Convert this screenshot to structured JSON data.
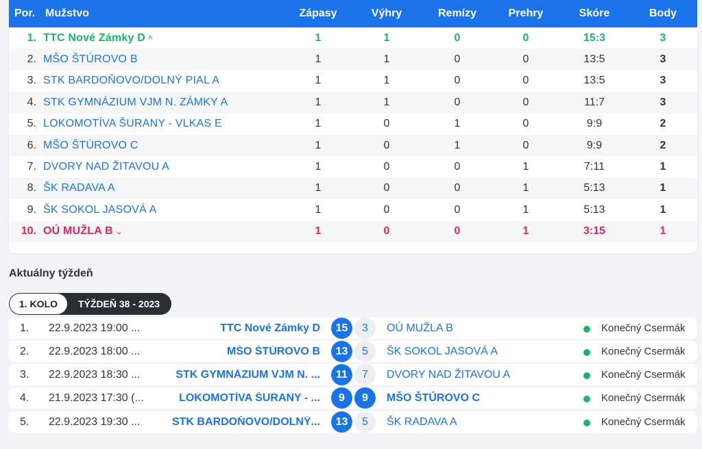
{
  "standings": {
    "headers": {
      "pos": "Por.",
      "team": "Mužstvo",
      "matches": "Zápasy",
      "wins": "Výhry",
      "draws": "Remízy",
      "losses": "Prehry",
      "score": "Skóre",
      "points": "Body"
    },
    "rows": [
      {
        "pos": "1.",
        "team": "TTC Nové Zámky D",
        "matches": "1",
        "wins": "1",
        "draws": "0",
        "losses": "0",
        "score": "15:3",
        "points": "3",
        "chev": "^"
      },
      {
        "pos": "2.",
        "team": "MŠO ŠTÚROVO B",
        "matches": "1",
        "wins": "1",
        "draws": "0",
        "losses": "0",
        "score": "13:5",
        "points": "3"
      },
      {
        "pos": "3.",
        "team": "STK BARDOŇOVO/DOLNÝ PIAL A",
        "matches": "1",
        "wins": "1",
        "draws": "0",
        "losses": "0",
        "score": "13:5",
        "points": "3"
      },
      {
        "pos": "4.",
        "team": "STK GYMNÁZIUM VJM N. ZÁMKY A",
        "matches": "1",
        "wins": "1",
        "draws": "0",
        "losses": "0",
        "score": "11:7",
        "points": "3"
      },
      {
        "pos": "5.",
        "team": "LOKOMOTÍVA ŠURANY - VLKAS E",
        "matches": "1",
        "wins": "0",
        "draws": "1",
        "losses": "0",
        "score": "9:9",
        "points": "2"
      },
      {
        "pos": "6.",
        "team": "MŠO ŠTÚROVO C",
        "matches": "1",
        "wins": "0",
        "draws": "1",
        "losses": "0",
        "score": "9:9",
        "points": "2"
      },
      {
        "pos": "7.",
        "team": "DVORY NAD ŽITAVOU A",
        "matches": "1",
        "wins": "0",
        "draws": "0",
        "losses": "1",
        "score": "7:11",
        "points": "1"
      },
      {
        "pos": "8.",
        "team": "ŠK RADAVA A",
        "matches": "1",
        "wins": "0",
        "draws": "0",
        "losses": "1",
        "score": "5:13",
        "points": "1"
      },
      {
        "pos": "9.",
        "team": "ŠK SOKOL JASOVÁ A",
        "matches": "1",
        "wins": "0",
        "draws": "0",
        "losses": "1",
        "score": "5:13",
        "points": "1"
      },
      {
        "pos": "10.",
        "team": "OÚ MUŽLA B",
        "matches": "1",
        "wins": "0",
        "draws": "0",
        "losses": "1",
        "score": "3:15",
        "points": "1",
        "chev": "⌄"
      }
    ]
  },
  "week": {
    "title": "Aktuálny týždeň",
    "round_label": "1. KOLO",
    "week_label": "TÝŽDEŇ 38 - 2023"
  },
  "matches": [
    {
      "no": "1.",
      "date": "22.9.2023 19:00 ...",
      "home": "TTC Nové Zámky D",
      "home_score": "15",
      "away_score": "3",
      "away": "OÚ MUŽLA B",
      "venue": "Konečný Csermák"
    },
    {
      "no": "2.",
      "date": "22.9.2023 18:00 ...",
      "home": "MŠO ŠTÚROVO B",
      "home_score": "13",
      "away_score": "5",
      "away": "ŠK SOKOL JASOVÁ A",
      "venue": "Konečný Csermák"
    },
    {
      "no": "3.",
      "date": "22.9.2023 18:30 ...",
      "home": "STK GYMNÁZIUM VJM N. ...",
      "home_score": "11",
      "away_score": "7",
      "away": "DVORY NAD ŽITAVOU A",
      "venue": "Konečný Csermák"
    },
    {
      "no": "4.",
      "date": "21.9.2023 17:30 (...",
      "home": "LOKOMOTÍVA ŠURANY - ...",
      "home_score": "9",
      "away_score": "9",
      "away": "MŠO ŠTÚROVO C",
      "venue": "Konečný Csermák"
    },
    {
      "no": "5.",
      "date": "22.9.2023 19:30 ...",
      "home": "STK BARDOŇOVO/DOLNÝ...",
      "home_score": "13",
      "away_score": "5",
      "away": "ŠK RADAVA A",
      "venue": "Konečný Csermák"
    }
  ],
  "colors": {
    "accent": "#1a73e8",
    "promoted": "#1ab46a",
    "relegated": "#e0245e",
    "status_dot": "#1ab46a"
  }
}
